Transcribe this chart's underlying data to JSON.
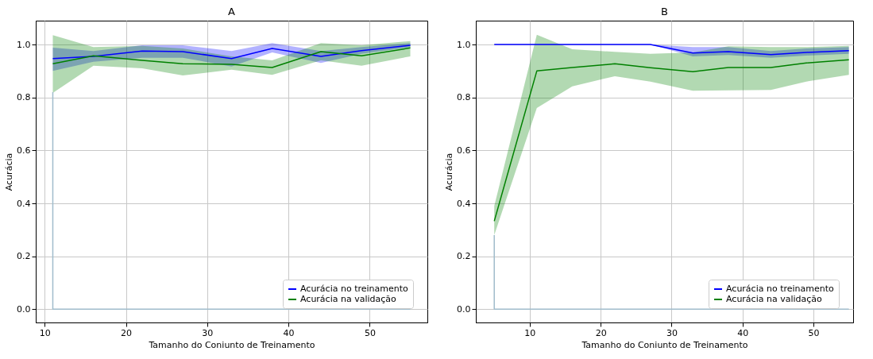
{
  "chart_data": [
    {
      "type": "line",
      "title": "A",
      "xlabel": "Tamanho do Coniunto de Treinamento",
      "ylabel": "Acurácia",
      "x": [
        11,
        16,
        22,
        27,
        33,
        38,
        44,
        49,
        55
      ],
      "xlim": [
        8.9,
        57.1
      ],
      "ylim": [
        -0.05,
        1.09
      ],
      "xticks": [
        10,
        20,
        30,
        40,
        50
      ],
      "yticks": [
        {
          "value": 0,
          "label": "0.0"
        },
        {
          "value": 0.2,
          "label": "0.2"
        },
        {
          "value": 0.4,
          "label": "0.4"
        },
        {
          "value": 0.6,
          "label": "0.6"
        },
        {
          "value": 0.8,
          "label": "0.8"
        },
        {
          "value": 1,
          "label": "1.0"
        }
      ],
      "grid": true,
      "legend": "bottom right",
      "series": [
        {
          "color": "#a0bccc",
          "x": [
            11,
            11,
            55
          ],
          "values": [
            0.82,
            0,
            0
          ]
        },
        {
          "name": "Acurácia no treinamento",
          "color": "#0000ff",
          "values": [
            0.947,
            0.955,
            0.975,
            0.973,
            0.947,
            0.985,
            0.955,
            0.977,
            0.997
          ],
          "lower": [
            0.9,
            0.935,
            0.95,
            0.95,
            0.917,
            0.97,
            0.93,
            0.965,
            0.99
          ],
          "upper": [
            0.988,
            0.975,
            0.997,
            0.997,
            0.975,
            1.005,
            0.975,
            0.99,
            1.005
          ]
        },
        {
          "name": "Acurácia na validação",
          "color": "#008000",
          "values": [
            0.927,
            0.957,
            0.94,
            0.927,
            0.925,
            0.913,
            0.973,
            0.957,
            0.987
          ],
          "lower": [
            0.817,
            0.92,
            0.91,
            0.883,
            0.905,
            0.885,
            0.94,
            0.92,
            0.955
          ],
          "upper": [
            1.035,
            0.99,
            0.995,
            0.985,
            0.955,
            0.94,
            1.005,
            0.997,
            1.013
          ]
        }
      ]
    },
    {
      "type": "line",
      "title": "B",
      "xlabel": "Tamanho do Coniunto de Treinamento",
      "ylabel": "Acurácia",
      "x": [
        5,
        11,
        16,
        22,
        27,
        33,
        38,
        44,
        49,
        55
      ],
      "xlim": [
        2.4,
        55.6
      ],
      "ylim": [
        -0.05,
        1.09
      ],
      "xticks": [
        10,
        20,
        30,
        40,
        50
      ],
      "yticks": [
        {
          "value": 0,
          "label": "0.0"
        },
        {
          "value": 0.2,
          "label": "0.2"
        },
        {
          "value": 0.4,
          "label": "0.4"
        },
        {
          "value": 0.6,
          "label": "0.6"
        },
        {
          "value": 0.8,
          "label": "0.8"
        },
        {
          "value": 1,
          "label": "1.0"
        }
      ],
      "grid": true,
      "legend": "bottom right",
      "series": [
        {
          "color": "#a0bccc",
          "x": [
            5,
            5,
            55
          ],
          "values": [
            0.28,
            0,
            0
          ]
        },
        {
          "name": "Acurácia no treinamento",
          "color": "#0000ff",
          "values": [
            1,
            1,
            1,
            1,
            1,
            0.968,
            0.973,
            0.962,
            0.97,
            0.977
          ],
          "lower": [
            1,
            1,
            1,
            1,
            1,
            0.955,
            0.96,
            0.95,
            0.958,
            0.965
          ],
          "upper": [
            1,
            1,
            1,
            1,
            1,
            0.99,
            0.99,
            0.975,
            0.985,
            0.99
          ]
        },
        {
          "name": "Acurácia na validação",
          "color": "#008000",
          "values": [
            0.333,
            0.9,
            0.913,
            0.927,
            0.912,
            0.897,
            0.913,
            0.913,
            0.93,
            0.942
          ],
          "lower": [
            0.28,
            0.76,
            0.842,
            0.88,
            0.86,
            0.825,
            0.827,
            0.828,
            0.86,
            0.885
          ],
          "upper": [
            0.39,
            1.037,
            0.982,
            0.972,
            0.965,
            0.97,
            0.993,
            0.99,
            0.99,
            0.995
          ]
        }
      ]
    }
  ]
}
